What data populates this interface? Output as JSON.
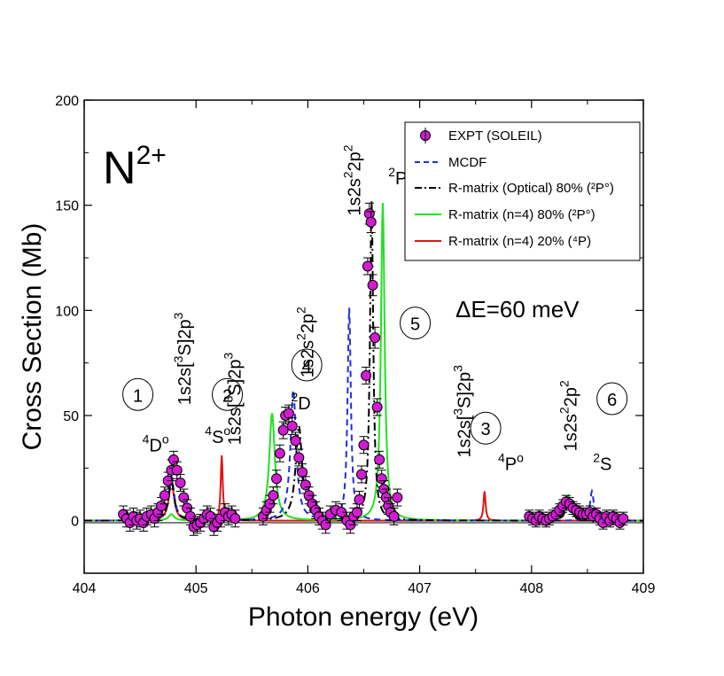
{
  "chart_data": {
    "type": "line",
    "xlabel": "Photon energy (eV)",
    "ylabel": "Cross Section (Mb)",
    "xlim": [
      404,
      409
    ],
    "ylim": [
      -25,
      200
    ],
    "x_ticks": [
      "404",
      "405",
      "406",
      "407",
      "408",
      "409"
    ],
    "y_ticks": [
      "0",
      "50",
      "100",
      "150",
      "200"
    ],
    "ion_label": {
      "base": "N",
      "sup": "2+"
    },
    "resolution_label": "ΔE=60 meV",
    "legend": {
      "placement": "top-right",
      "entries": [
        {
          "series": "expt",
          "label": "EXPT (SOLEIL)"
        },
        {
          "series": "mcdf",
          "label": "MCDF"
        },
        {
          "series": "rm_optical",
          "label": "R-matrix (Optical) 80% (²P°)"
        },
        {
          "series": "rm_n4_80",
          "label": "R-matrix (n=4) 80% (²P°)"
        },
        {
          "series": "rm_n4_20",
          "label": "R-matrix (n=4) 20% (⁴P)"
        }
      ]
    },
    "colors": {
      "expt_fill": "#d21cd2",
      "mcdf": "#1f2fd6",
      "rm_optical": "#000000",
      "rm_n4_80": "#22e022",
      "rm_n4_20": "#e01414"
    },
    "series": [
      {
        "key": "rm_n4_20",
        "style": "solid",
        "baseline": 0,
        "peaks": [
          {
            "x": 404.78,
            "height": 19,
            "width": 0.055
          },
          {
            "x": 405.23,
            "height": 31,
            "width": 0.022
          },
          {
            "x": 407.58,
            "height": 14,
            "width": 0.022
          }
        ]
      },
      {
        "key": "rm_n4_80",
        "style": "solid",
        "baseline": 0,
        "peaks": [
          {
            "x": 404.78,
            "height": 3,
            "width": 0.06
          },
          {
            "x": 405.68,
            "height": 51,
            "width": 0.06
          },
          {
            "x": 406.67,
            "height": 151,
            "width": 0.04
          },
          {
            "x": 408.33,
            "height": 12,
            "width": 0.05
          }
        ]
      },
      {
        "key": "mcdf",
        "style": "dashed",
        "baseline": 0,
        "peaks": [
          {
            "x": 404.78,
            "height": 21,
            "width": 0.06
          },
          {
            "x": 405.28,
            "height": 3,
            "width": 0.05
          },
          {
            "x": 405.87,
            "height": 62,
            "width": 0.06
          },
          {
            "x": 406.37,
            "height": 101,
            "width": 0.035
          },
          {
            "x": 408.54,
            "height": 14,
            "width": 0.04
          }
        ]
      },
      {
        "key": "rm_optical",
        "style": "dashdot",
        "baseline": 0,
        "peaks": [
          {
            "x": 404.78,
            "height": 19,
            "width": 0.06
          },
          {
            "x": 405.28,
            "height": 3,
            "width": 0.05
          },
          {
            "x": 405.92,
            "height": 45,
            "width": 0.07
          },
          {
            "x": 406.57,
            "height": 152,
            "width": 0.035
          },
          {
            "x": 408.33,
            "height": 9,
            "width": 0.06
          }
        ]
      }
    ],
    "expt": {
      "key": "expt",
      "points": [
        [
          404.35,
          3,
          4
        ],
        [
          404.38,
          1,
          4
        ],
        [
          404.41,
          -1,
          4
        ],
        [
          404.44,
          2,
          4
        ],
        [
          404.47,
          0,
          4
        ],
        [
          404.5,
          1,
          4
        ],
        [
          404.53,
          -1,
          4
        ],
        [
          404.56,
          2,
          4
        ],
        [
          404.6,
          3,
          4
        ],
        [
          404.63,
          1,
          4
        ],
        [
          404.66,
          4,
          4
        ],
        [
          404.69,
          7,
          4
        ],
        [
          404.72,
          12,
          4
        ],
        [
          404.75,
          19,
          4
        ],
        [
          404.78,
          24,
          5
        ],
        [
          404.8,
          29,
          4
        ],
        [
          404.83,
          24,
          4
        ],
        [
          404.86,
          18,
          4
        ],
        [
          404.89,
          11,
          4
        ],
        [
          404.92,
          6,
          4
        ],
        [
          404.95,
          2,
          4
        ],
        [
          404.98,
          -3,
          4
        ],
        [
          405.01,
          -2,
          4
        ],
        [
          405.04,
          -1,
          4
        ],
        [
          405.07,
          1,
          4
        ],
        [
          405.1,
          3,
          4
        ],
        [
          405.13,
          2,
          4
        ],
        [
          405.16,
          -3,
          4
        ],
        [
          405.19,
          -1,
          4
        ],
        [
          405.22,
          1,
          4
        ],
        [
          405.26,
          4,
          4
        ],
        [
          405.29,
          2,
          4
        ],
        [
          405.32,
          3,
          4
        ],
        [
          405.35,
          1,
          4
        ],
        [
          405.6,
          2,
          4
        ],
        [
          405.63,
          5,
          4
        ],
        [
          405.66,
          8,
          4
        ],
        [
          405.69,
          12,
          4
        ],
        [
          405.72,
          20,
          4
        ],
        [
          405.75,
          32,
          4
        ],
        [
          405.78,
          43,
          4
        ],
        [
          405.8,
          50,
          4
        ],
        [
          405.83,
          51,
          4
        ],
        [
          405.86,
          45,
          4
        ],
        [
          405.89,
          38,
          4
        ],
        [
          405.92,
          30,
          4
        ],
        [
          405.95,
          23,
          4
        ],
        [
          405.98,
          17,
          4
        ],
        [
          406.01,
          12,
          4
        ],
        [
          406.04,
          8,
          4
        ],
        [
          406.07,
          5,
          4
        ],
        [
          406.1,
          2,
          4
        ],
        [
          406.13,
          0,
          4
        ],
        [
          406.16,
          -2,
          4
        ],
        [
          406.2,
          3,
          4
        ],
        [
          406.25,
          5,
          4
        ],
        [
          406.3,
          4,
          4
        ],
        [
          406.35,
          0,
          4
        ],
        [
          406.38,
          -2,
          4
        ],
        [
          406.41,
          2,
          4
        ],
        [
          406.44,
          4,
          4
        ],
        [
          406.46,
          10,
          4
        ],
        [
          406.48,
          22,
          4
        ],
        [
          406.5,
          36,
          4
        ],
        [
          406.52,
          69,
          4
        ],
        [
          406.535,
          121,
          4
        ],
        [
          406.55,
          146,
          5
        ],
        [
          406.565,
          142,
          5
        ],
        [
          406.58,
          112,
          5
        ],
        [
          406.6,
          87,
          5
        ],
        [
          406.62,
          54,
          4
        ],
        [
          406.64,
          29,
          4
        ],
        [
          406.66,
          20,
          4
        ],
        [
          406.68,
          15,
          4
        ],
        [
          406.7,
          11,
          4
        ],
        [
          406.72,
          7,
          4
        ],
        [
          406.74,
          4,
          4
        ],
        [
          406.77,
          2,
          4
        ],
        [
          406.8,
          11,
          4
        ],
        [
          407.98,
          2,
          3
        ],
        [
          408.01,
          1,
          3
        ],
        [
          408.04,
          0,
          3
        ],
        [
          408.07,
          2,
          3
        ],
        [
          408.1,
          1,
          3
        ],
        [
          408.13,
          0,
          3
        ],
        [
          408.16,
          1,
          3
        ],
        [
          408.19,
          2,
          3
        ],
        [
          408.22,
          3,
          3
        ],
        [
          408.25,
          5,
          3
        ],
        [
          408.28,
          7,
          3
        ],
        [
          408.31,
          9,
          3
        ],
        [
          408.34,
          8,
          3
        ],
        [
          408.37,
          6,
          3
        ],
        [
          408.4,
          5,
          3
        ],
        [
          408.43,
          4,
          3
        ],
        [
          408.46,
          3,
          3
        ],
        [
          408.49,
          3,
          3
        ],
        [
          408.52,
          4,
          3
        ],
        [
          408.55,
          2,
          3
        ],
        [
          408.58,
          3,
          3
        ],
        [
          408.61,
          1,
          3
        ],
        [
          408.64,
          -1,
          3
        ],
        [
          408.67,
          2,
          3
        ],
        [
          408.7,
          0,
          3
        ],
        [
          408.73,
          2,
          3
        ],
        [
          408.76,
          1,
          3
        ],
        [
          408.79,
          -1,
          3
        ],
        [
          408.82,
          1,
          3
        ]
      ]
    },
    "circled_labels": [
      {
        "text": "1",
        "x": 404.48,
        "y": 60
      },
      {
        "text": "2",
        "x": 405.28,
        "y": 60
      },
      {
        "text": "4",
        "x": 405.99,
        "y": 74
      },
      {
        "text": "5",
        "x": 406.96,
        "y": 94
      },
      {
        "text": "3",
        "x": 407.59,
        "y": 44
      },
      {
        "text": "6",
        "x": 408.72,
        "y": 58
      }
    ],
    "annotations": [
      {
        "main": "1s2s[",
        "s1": "3",
        "mid": "S]2p",
        "s2": "3",
        "x": 404.95,
        "y": 55,
        "vertical": true
      },
      {
        "main": "",
        "s1": "4",
        "mid": "D",
        "s2": "o",
        "x": 404.52,
        "y": 33,
        "vertical": false
      },
      {
        "main": "1s2s[",
        "s1": "3",
        "mid": "S]2p",
        "s2": "3",
        "x": 405.4,
        "y": 36,
        "vertical": true
      },
      {
        "main": "",
        "s1": "4",
        "mid": "S",
        "s2": "o",
        "x": 405.08,
        "y": 37,
        "vertical": false
      },
      {
        "main": "1s2s",
        "s1": "2",
        "mid": "2p",
        "s2": "2",
        "x": 406.05,
        "y": 68,
        "vertical": true
      },
      {
        "main": "",
        "s1": "2",
        "mid": "D",
        "s2": "",
        "x": 405.85,
        "y": 53,
        "vertical": false
      },
      {
        "main": "1s2s",
        "s1": "2",
        "mid": "2p",
        "s2": "2",
        "x": 406.47,
        "y": 145,
        "vertical": true
      },
      {
        "main": "",
        "s1": "2",
        "mid": "P",
        "s2": "",
        "x": 406.72,
        "y": 160,
        "vertical": false
      },
      {
        "main": "1s2s[",
        "s1": "3",
        "mid": "S]2p",
        "s2": "3",
        "x": 407.45,
        "y": 30,
        "vertical": true
      },
      {
        "main": "",
        "s1": "4",
        "mid": "P",
        "s2": "o",
        "x": 407.7,
        "y": 24,
        "vertical": false
      },
      {
        "main": "1s2s",
        "s1": "2",
        "mid": "2p",
        "s2": "2",
        "x": 408.4,
        "y": 33,
        "vertical": true
      },
      {
        "main": "",
        "s1": "2",
        "mid": "S",
        "s2": "",
        "x": 408.55,
        "y": 24,
        "vertical": false
      }
    ]
  }
}
